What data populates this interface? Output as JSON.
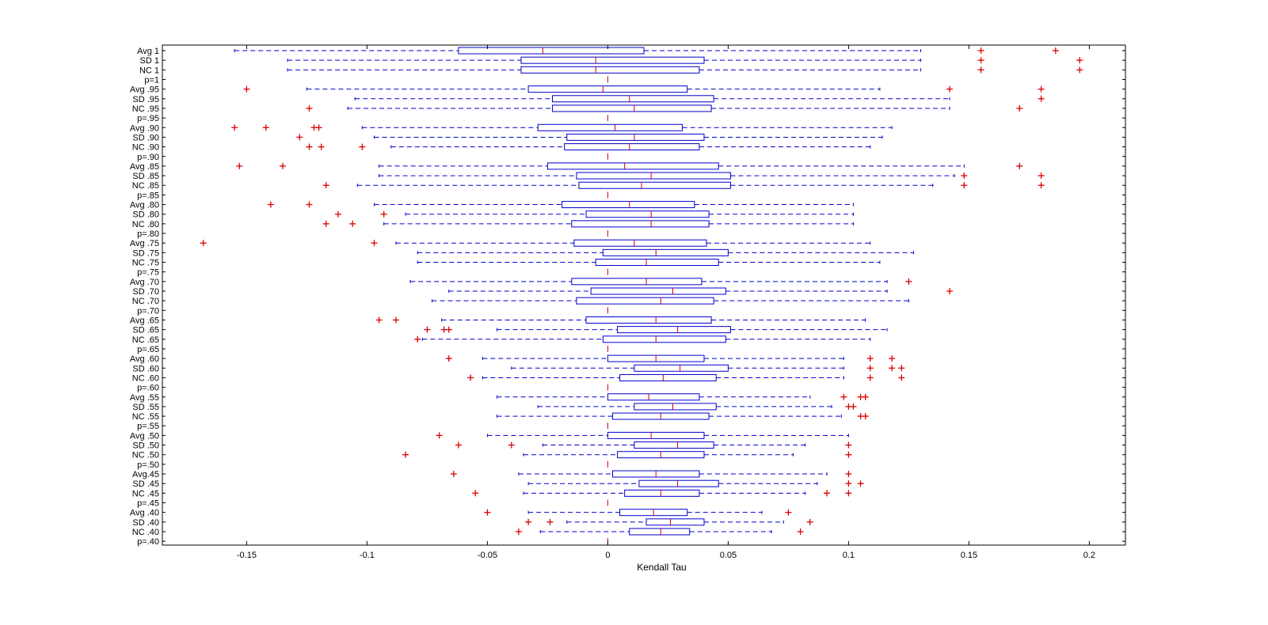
{
  "chart_data": {
    "type": "boxplot",
    "orientation": "horizontal",
    "title": "",
    "xlabel": "Kendall Tau",
    "ylabel": "",
    "xlim": [
      -0.185,
      0.215
    ],
    "xticks": [
      -0.15,
      -0.1,
      -0.05,
      0,
      0.05,
      0.1,
      0.15,
      0.2
    ],
    "xtick_labels": [
      "-0.15",
      "-0.1",
      "-0.05",
      "0",
      "0.05",
      "0.1",
      "0.15",
      "0.2"
    ],
    "grid": false,
    "colors": {
      "box": "#0000cc",
      "median": "#cc0000",
      "outlier": "#dd0000",
      "axis": "#000000"
    },
    "boxes": [
      {
        "label": "Avg 1",
        "wl": -0.155,
        "q1": -0.062,
        "med": -0.027,
        "q3": 0.015,
        "wh": 0.13,
        "outliers": [
          0.155,
          0.186
        ]
      },
      {
        "label": "SD 1",
        "wl": -0.133,
        "q1": -0.036,
        "med": -0.005,
        "q3": 0.04,
        "wh": 0.13,
        "outliers": [
          0.155,
          0.196
        ]
      },
      {
        "label": "NC 1",
        "wl": -0.133,
        "q1": -0.036,
        "med": -0.005,
        "q3": 0.038,
        "wh": 0.13,
        "outliers": [
          0.155,
          0.196
        ]
      },
      {
        "label": "p=1",
        "wl": 0,
        "q1": 0,
        "med": 0,
        "q3": 0,
        "wh": 0,
        "outliers": []
      },
      {
        "label": "Avg .95",
        "wl": -0.125,
        "q1": -0.033,
        "med": -0.002,
        "q3": 0.033,
        "wh": 0.113,
        "outliers": [
          -0.15,
          0.142,
          0.18
        ]
      },
      {
        "label": "SD .95",
        "wl": -0.105,
        "q1": -0.023,
        "med": 0.009,
        "q3": 0.044,
        "wh": 0.142,
        "outliers": [
          0.18
        ]
      },
      {
        "label": "NC .95",
        "wl": -0.108,
        "q1": -0.023,
        "med": 0.011,
        "q3": 0.043,
        "wh": 0.142,
        "outliers": [
          -0.124,
          0.171
        ]
      },
      {
        "label": "p=.95",
        "wl": 0,
        "q1": 0,
        "med": 0,
        "q3": 0,
        "wh": 0,
        "outliers": []
      },
      {
        "label": "Avg .90",
        "wl": -0.102,
        "q1": -0.029,
        "med": 0.003,
        "q3": 0.031,
        "wh": 0.118,
        "outliers": [
          -0.155,
          -0.142,
          -0.122,
          -0.12
        ]
      },
      {
        "label": "SD .90",
        "wl": -0.097,
        "q1": -0.017,
        "med": 0.011,
        "q3": 0.04,
        "wh": 0.114,
        "outliers": [
          -0.128
        ]
      },
      {
        "label": "NC .90",
        "wl": -0.09,
        "q1": -0.018,
        "med": 0.009,
        "q3": 0.038,
        "wh": 0.109,
        "outliers": [
          -0.124,
          -0.119,
          -0.102
        ]
      },
      {
        "label": "p=.90",
        "wl": 0,
        "q1": 0,
        "med": 0,
        "q3": 0,
        "wh": 0,
        "outliers": []
      },
      {
        "label": "Avg .85",
        "wl": -0.095,
        "q1": -0.025,
        "med": 0.007,
        "q3": 0.046,
        "wh": 0.148,
        "outliers": [
          -0.153,
          -0.135,
          0.171
        ]
      },
      {
        "label": "SD .85",
        "wl": -0.095,
        "q1": -0.013,
        "med": 0.018,
        "q3": 0.051,
        "wh": 0.144,
        "outliers": [
          0.148,
          0.18
        ]
      },
      {
        "label": "NC .85",
        "wl": -0.104,
        "q1": -0.012,
        "med": 0.014,
        "q3": 0.051,
        "wh": 0.135,
        "outliers": [
          -0.117,
          0.148,
          0.18
        ]
      },
      {
        "label": "p=.85",
        "wl": 0,
        "q1": 0,
        "med": 0,
        "q3": 0,
        "wh": 0,
        "outliers": []
      },
      {
        "label": "Avg .80",
        "wl": -0.097,
        "q1": -0.019,
        "med": 0.009,
        "q3": 0.036,
        "wh": 0.102,
        "outliers": [
          -0.14,
          -0.124
        ]
      },
      {
        "label": "SD .80",
        "wl": -0.084,
        "q1": -0.009,
        "med": 0.018,
        "q3": 0.042,
        "wh": 0.102,
        "outliers": [
          -0.112,
          -0.093
        ]
      },
      {
        "label": "NC .80",
        "wl": -0.093,
        "q1": -0.015,
        "med": 0.018,
        "q3": 0.042,
        "wh": 0.102,
        "outliers": [
          -0.117,
          -0.106
        ]
      },
      {
        "label": "p=.80",
        "wl": 0,
        "q1": 0,
        "med": 0,
        "q3": 0,
        "wh": 0,
        "outliers": []
      },
      {
        "label": "Avg .75",
        "wl": -0.088,
        "q1": -0.014,
        "med": 0.011,
        "q3": 0.041,
        "wh": 0.109,
        "outliers": [
          -0.168,
          -0.097
        ]
      },
      {
        "label": "SD .75",
        "wl": -0.079,
        "q1": -0.002,
        "med": 0.02,
        "q3": 0.05,
        "wh": 0.127,
        "outliers": []
      },
      {
        "label": "NC .75",
        "wl": -0.079,
        "q1": -0.005,
        "med": 0.016,
        "q3": 0.046,
        "wh": 0.113,
        "outliers": []
      },
      {
        "label": "p=.75",
        "wl": 0,
        "q1": 0,
        "med": 0,
        "q3": 0,
        "wh": 0,
        "outliers": []
      },
      {
        "label": "Avg .70",
        "wl": -0.082,
        "q1": -0.015,
        "med": 0.016,
        "q3": 0.039,
        "wh": 0.116,
        "outliers": [
          0.125
        ]
      },
      {
        "label": "SD .70",
        "wl": -0.066,
        "q1": -0.007,
        "med": 0.027,
        "q3": 0.049,
        "wh": 0.116,
        "outliers": [
          0.142
        ]
      },
      {
        "label": "NC .70",
        "wl": -0.073,
        "q1": -0.013,
        "med": 0.022,
        "q3": 0.044,
        "wh": 0.125,
        "outliers": []
      },
      {
        "label": "p=.70",
        "wl": 0,
        "q1": 0,
        "med": 0,
        "q3": 0,
        "wh": 0,
        "outliers": []
      },
      {
        "label": "Avg .65",
        "wl": -0.069,
        "q1": -0.009,
        "med": 0.02,
        "q3": 0.043,
        "wh": 0.107,
        "outliers": [
          -0.095,
          -0.088
        ]
      },
      {
        "label": "SD .65",
        "wl": -0.046,
        "q1": 0.004,
        "med": 0.029,
        "q3": 0.051,
        "wh": 0.116,
        "outliers": [
          -0.075,
          -0.068,
          -0.066
        ]
      },
      {
        "label": "NC .65",
        "wl": -0.077,
        "q1": -0.002,
        "med": 0.02,
        "q3": 0.049,
        "wh": 0.109,
        "outliers": [
          -0.079
        ]
      },
      {
        "label": "p=.65",
        "wl": 0,
        "q1": 0,
        "med": 0,
        "q3": 0,
        "wh": 0,
        "outliers": []
      },
      {
        "label": "Avg .60",
        "wl": -0.052,
        "q1": 0,
        "med": 0.02,
        "q3": 0.04,
        "wh": 0.098,
        "outliers": [
          -0.066,
          0.109,
          0.118
        ]
      },
      {
        "label": "SD .60",
        "wl": -0.04,
        "q1": 0.011,
        "med": 0.03,
        "q3": 0.05,
        "wh": 0.098,
        "outliers": [
          0.109,
          0.118,
          0.122
        ]
      },
      {
        "label": "NC .60",
        "wl": -0.052,
        "q1": 0.005,
        "med": 0.023,
        "q3": 0.045,
        "wh": 0.098,
        "outliers": [
          -0.057,
          0.109,
          0.122
        ]
      },
      {
        "label": "p=.60",
        "wl": 0,
        "q1": 0,
        "med": 0,
        "q3": 0,
        "wh": 0,
        "outliers": []
      },
      {
        "label": "Avg .55",
        "wl": -0.046,
        "q1": 0,
        "med": 0.017,
        "q3": 0.038,
        "wh": 0.084,
        "outliers": [
          0.098,
          0.105,
          0.107
        ]
      },
      {
        "label": "SD .55",
        "wl": -0.029,
        "q1": 0.011,
        "med": 0.027,
        "q3": 0.045,
        "wh": 0.093,
        "outliers": [
          0.1,
          0.102
        ]
      },
      {
        "label": "NC .55",
        "wl": -0.046,
        "q1": 0.002,
        "med": 0.022,
        "q3": 0.042,
        "wh": 0.097,
        "outliers": [
          0.105,
          0.107
        ]
      },
      {
        "label": "p=.55",
        "wl": 0,
        "q1": 0,
        "med": 0,
        "q3": 0,
        "wh": 0,
        "outliers": []
      },
      {
        "label": "Avg .50",
        "wl": -0.05,
        "q1": 0,
        "med": 0.018,
        "q3": 0.04,
        "wh": 0.1,
        "outliers": [
          -0.07
        ]
      },
      {
        "label": "SD .50",
        "wl": -0.027,
        "q1": 0.011,
        "med": 0.029,
        "q3": 0.044,
        "wh": 0.082,
        "outliers": [
          -0.062,
          -0.04,
          0.1
        ]
      },
      {
        "label": "NC .50",
        "wl": -0.035,
        "q1": 0.004,
        "med": 0.022,
        "q3": 0.04,
        "wh": 0.077,
        "outliers": [
          -0.084,
          0.1
        ]
      },
      {
        "label": "p=.50",
        "wl": 0,
        "q1": 0,
        "med": 0,
        "q3": 0,
        "wh": 0,
        "outliers": []
      },
      {
        "label": "Avg.45",
        "wl": -0.037,
        "q1": 0.002,
        "med": 0.02,
        "q3": 0.038,
        "wh": 0.091,
        "outliers": [
          -0.064,
          0.1
        ]
      },
      {
        "label": "SD .45",
        "wl": -0.033,
        "q1": 0.013,
        "med": 0.029,
        "q3": 0.046,
        "wh": 0.087,
        "outliers": [
          0.1,
          0.105
        ]
      },
      {
        "label": "NC .45",
        "wl": -0.035,
        "q1": 0.007,
        "med": 0.022,
        "q3": 0.038,
        "wh": 0.082,
        "outliers": [
          -0.055,
          0.091,
          0.1
        ]
      },
      {
        "label": "p=.45",
        "wl": 0,
        "q1": 0,
        "med": 0,
        "q3": 0,
        "wh": 0,
        "outliers": []
      },
      {
        "label": "Avg .40",
        "wl": -0.033,
        "q1": 0.005,
        "med": 0.019,
        "q3": 0.033,
        "wh": 0.064,
        "outliers": [
          -0.05,
          0.075
        ]
      },
      {
        "label": "SD .40",
        "wl": -0.017,
        "q1": 0.016,
        "med": 0.026,
        "q3": 0.04,
        "wh": 0.073,
        "outliers": [
          -0.033,
          -0.024,
          0.084
        ]
      },
      {
        "label": "NC .40",
        "wl": -0.028,
        "q1": 0.009,
        "med": 0.022,
        "q3": 0.034,
        "wh": 0.068,
        "outliers": [
          -0.037,
          0.08
        ]
      },
      {
        "label": "p=.40",
        "wl": 0,
        "q1": 0,
        "med": 0,
        "q3": 0,
        "wh": 0,
        "outliers": []
      }
    ]
  }
}
